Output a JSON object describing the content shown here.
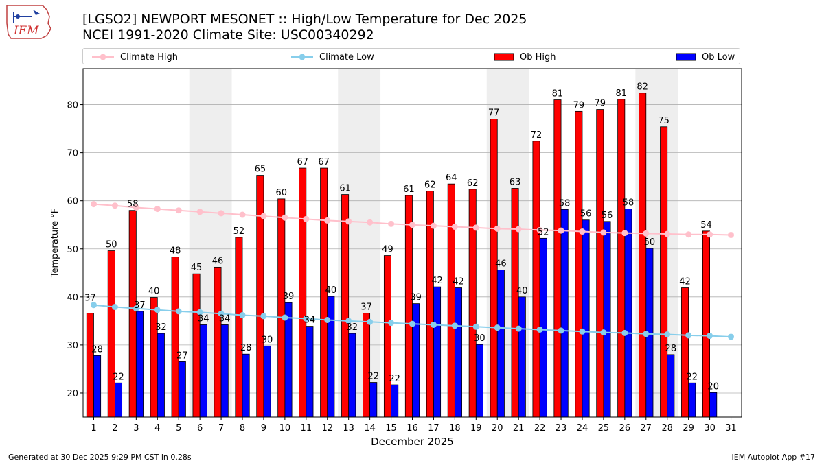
{
  "logo_text": "IEM",
  "title_line1": "[LGSO2] NEWPORT MESONET :: High/Low Temperature for Dec 2025",
  "title_line2": "NCEI 1991-2020 Climate Site: USC00340292",
  "footer_left": "Generated at 30 Dec 2025 9:29 PM CST in 0.28s",
  "footer_right": "IEM Autoplot App #17",
  "colors": {
    "climate_high": "#ffc0cb",
    "climate_low": "#87ceeb",
    "ob_high": "#ff0000",
    "ob_low": "#0000ff",
    "weekend_shade": "#eeeeee",
    "grid": "#b0b0b0"
  },
  "chart_data": {
    "type": "bar",
    "title": "[LGSO2] NEWPORT MESONET :: High/Low Temperature for Dec 2025",
    "subtitle": "NCEI 1991-2020 Climate Site: USC00340292",
    "xlabel": "December 2025",
    "ylabel": "Temperature °F",
    "ylim": [
      15,
      87.5
    ],
    "yticks": [
      20,
      30,
      40,
      50,
      60,
      70,
      80
    ],
    "grid": "y",
    "legend_position": "top",
    "categories": [
      "1",
      "2",
      "3",
      "4",
      "5",
      "6",
      "7",
      "8",
      "9",
      "10",
      "11",
      "12",
      "13",
      "14",
      "15",
      "16",
      "17",
      "18",
      "19",
      "20",
      "21",
      "22",
      "23",
      "24",
      "25",
      "26",
      "27",
      "28",
      "29",
      "30",
      "31"
    ],
    "shaded_weekend_days": [
      [
        6,
        7
      ],
      [
        13,
        14
      ],
      [
        20,
        21
      ],
      [
        27,
        28
      ]
    ],
    "series": [
      {
        "name": "Ob High",
        "kind": "bar",
        "values": [
          36.6,
          49.6,
          58.0,
          39.9,
          48.3,
          44.8,
          46.2,
          52.4,
          65.3,
          60.4,
          66.8,
          66.8,
          61.3,
          36.6,
          48.6,
          61.1,
          62.0,
          63.5,
          62.4,
          77.0,
          62.6,
          72.4,
          81.0,
          78.6,
          79.0,
          81.1,
          82.4,
          75.4,
          41.9,
          53.7,
          null
        ],
        "labels": [
          "",
          "50",
          "58",
          "40",
          "48",
          "45",
          "46",
          "52",
          "65",
          "60",
          "67",
          "67",
          "61",
          "37",
          "49",
          "61",
          "62",
          "64",
          "62",
          "77",
          "63",
          "72",
          "81",
          "79",
          "79",
          "81",
          "82",
          "75",
          "42",
          "54",
          ""
        ]
      },
      {
        "name": "Ob Low",
        "kind": "bar",
        "values": [
          27.8,
          22.1,
          37.0,
          32.4,
          26.5,
          34.2,
          34.2,
          28.1,
          29.8,
          38.8,
          33.9,
          40.1,
          32.4,
          22.2,
          21.7,
          38.6,
          42.1,
          41.9,
          30.1,
          45.6,
          40.0,
          52.2,
          58.2,
          56.0,
          55.7,
          58.3,
          50.1,
          28.0,
          22.1,
          20.1,
          null
        ],
        "labels": [
          "28",
          "22",
          "37",
          "32",
          "27",
          "34",
          "34",
          "28",
          "30",
          "39",
          "34",
          "40",
          "32",
          "22",
          "22",
          "39",
          "42",
          "42",
          "30",
          "46",
          "40",
          "52",
          "58",
          "56",
          "56",
          "58",
          "50",
          "28",
          "22",
          "20",
          ""
        ]
      },
      {
        "name": "Climate High",
        "kind": "line",
        "values": [
          59.3,
          59.0,
          58.6,
          58.3,
          58.0,
          57.7,
          57.4,
          57.1,
          56.8,
          56.5,
          56.2,
          55.9,
          55.7,
          55.5,
          55.2,
          55.0,
          54.8,
          54.6,
          54.4,
          54.2,
          54.1,
          53.9,
          53.8,
          53.6,
          53.4,
          53.3,
          53.2,
          53.1,
          53.0,
          53.0,
          52.9
        ]
      },
      {
        "name": "Climate Low",
        "kind": "line",
        "values": [
          38.3,
          37.9,
          37.6,
          37.3,
          37.0,
          36.8,
          36.5,
          36.2,
          36.0,
          35.7,
          35.5,
          35.2,
          35.0,
          34.8,
          34.6,
          34.4,
          34.2,
          34.0,
          33.8,
          33.6,
          33.4,
          33.2,
          33.0,
          32.8,
          32.6,
          32.5,
          32.3,
          32.2,
          32.0,
          31.9,
          31.7
        ]
      }
    ],
    "extra_labels": [
      {
        "day": 1,
        "text": "37"
      }
    ]
  }
}
